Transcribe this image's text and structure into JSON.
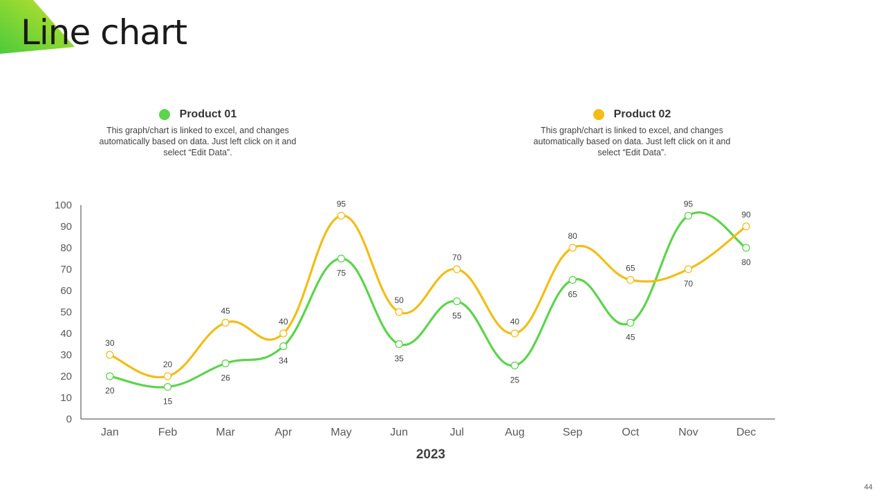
{
  "slide": {
    "title": "Line chart",
    "page_number": "44"
  },
  "colors": {
    "accent_green": "#5bd44b",
    "accent_yellow": "#f2bd15",
    "corner_light": "#b8e02a",
    "corner_dark": "#4ccb3c"
  },
  "legend": [
    {
      "name": "Product 01",
      "color": "#5bd44b",
      "description": "This graph/chart is linked to excel, and changes automatically based on data. Just left click on it and select “Edit Data”."
    },
    {
      "name": "Product 02",
      "color": "#f2bd15",
      "description": "This graph/chart is linked to excel, and changes automatically based on data. Just left click on it and select “Edit Data”."
    }
  ],
  "chart_data": {
    "type": "line",
    "title": "",
    "xlabel": "2023",
    "ylabel": "",
    "categories": [
      "Jan",
      "Feb",
      "Mar",
      "Apr",
      "May",
      "Jun",
      "Jul",
      "Aug",
      "Sep",
      "Oct",
      "Nov",
      "Dec"
    ],
    "ylim": [
      0,
      100
    ],
    "yticks": [
      0,
      10,
      20,
      30,
      40,
      50,
      60,
      70,
      80,
      90,
      100
    ],
    "smooth": true,
    "series": [
      {
        "name": "Product 01",
        "color": "#5bd44b",
        "values": [
          20,
          15,
          26,
          34,
          75,
          35,
          55,
          25,
          65,
          45,
          95,
          80
        ]
      },
      {
        "name": "Product 02",
        "color": "#f2bd15",
        "values": [
          30,
          20,
          45,
          40,
          95,
          50,
          70,
          40,
          80,
          65,
          70,
          90
        ]
      }
    ]
  }
}
